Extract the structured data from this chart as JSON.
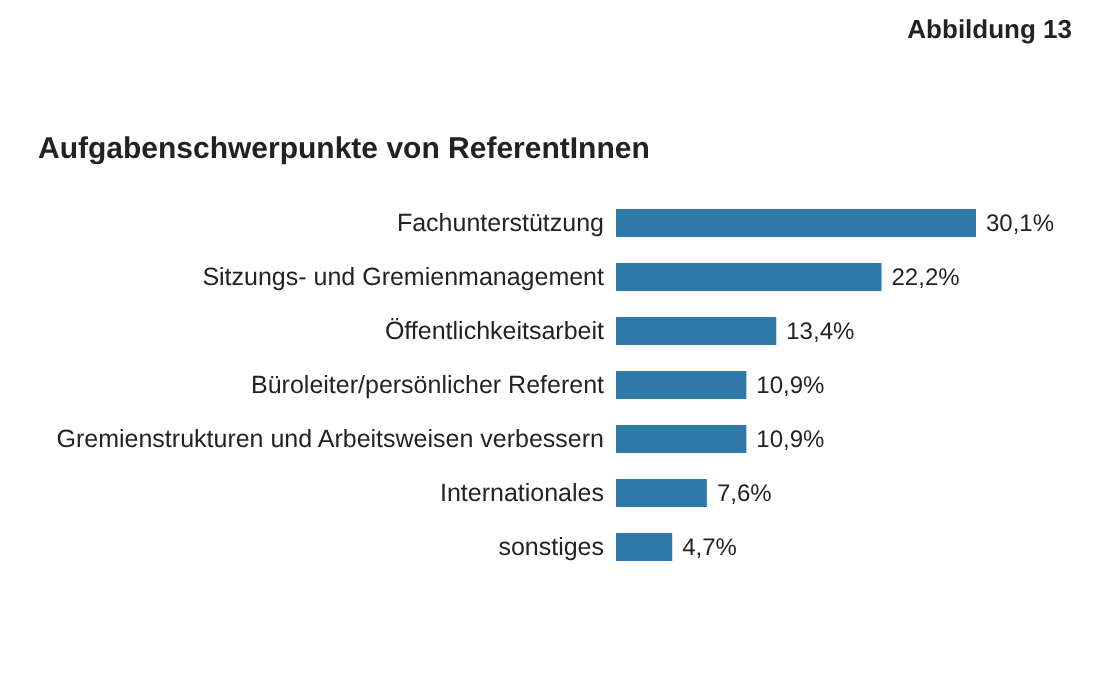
{
  "chart_data": {
    "type": "bar",
    "orientation": "horizontal",
    "title": "Aufgabenschwerpunkte von ReferentInnen",
    "annotations": [
      "Abbildung 13"
    ],
    "categories": [
      "Fachunterstützung",
      "Sitzungs- und Gremienmanagement",
      "Öffentlichkeitsarbeit",
      "Büroleiter/persönlicher Referent",
      "Gremienstrukturen und Arbeitsweisen verbessern",
      "Internationales",
      "sonstiges"
    ],
    "values": [
      30.1,
      22.2,
      13.4,
      10.9,
      10.9,
      7.6,
      4.7
    ],
    "value_labels": [
      "30,1%",
      "22,2%",
      "13,4%",
      "10,9%",
      "10,9%",
      "7,6%",
      "4,7%"
    ],
    "color": "#2e7aa8"
  }
}
